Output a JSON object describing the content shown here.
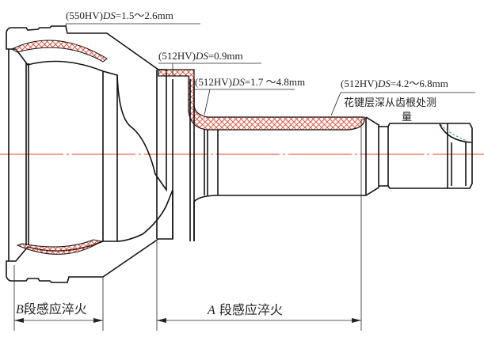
{
  "annotations": {
    "bell_case": {
      "prefix": "(550HV)",
      "ds": "DS",
      "value": "=1.5～2.6mm"
    },
    "flange": {
      "prefix": "(512HV)",
      "ds": "DS",
      "value": "=0.9mm"
    },
    "shaft": {
      "prefix": "(512HV)",
      "ds": "DS",
      "value": "=1.7 ～4.8mm"
    },
    "spline": {
      "prefix": "(512HV)",
      "ds": "DS",
      "value": "=4.2～6.8mm",
      "note_line1": "花键层深从齿根处测",
      "note_line2": "量"
    }
  },
  "dimensions": {
    "b_zone": {
      "letter": "B",
      "label": "段感应淬火"
    },
    "a_zone": {
      "letter": "A",
      "label": " 段感应淬火"
    }
  },
  "colors": {
    "hardened_layer": "#e8432a",
    "section_hatch": "#2faa5a",
    "centerline": "#e8432a",
    "outline": "#111111"
  }
}
